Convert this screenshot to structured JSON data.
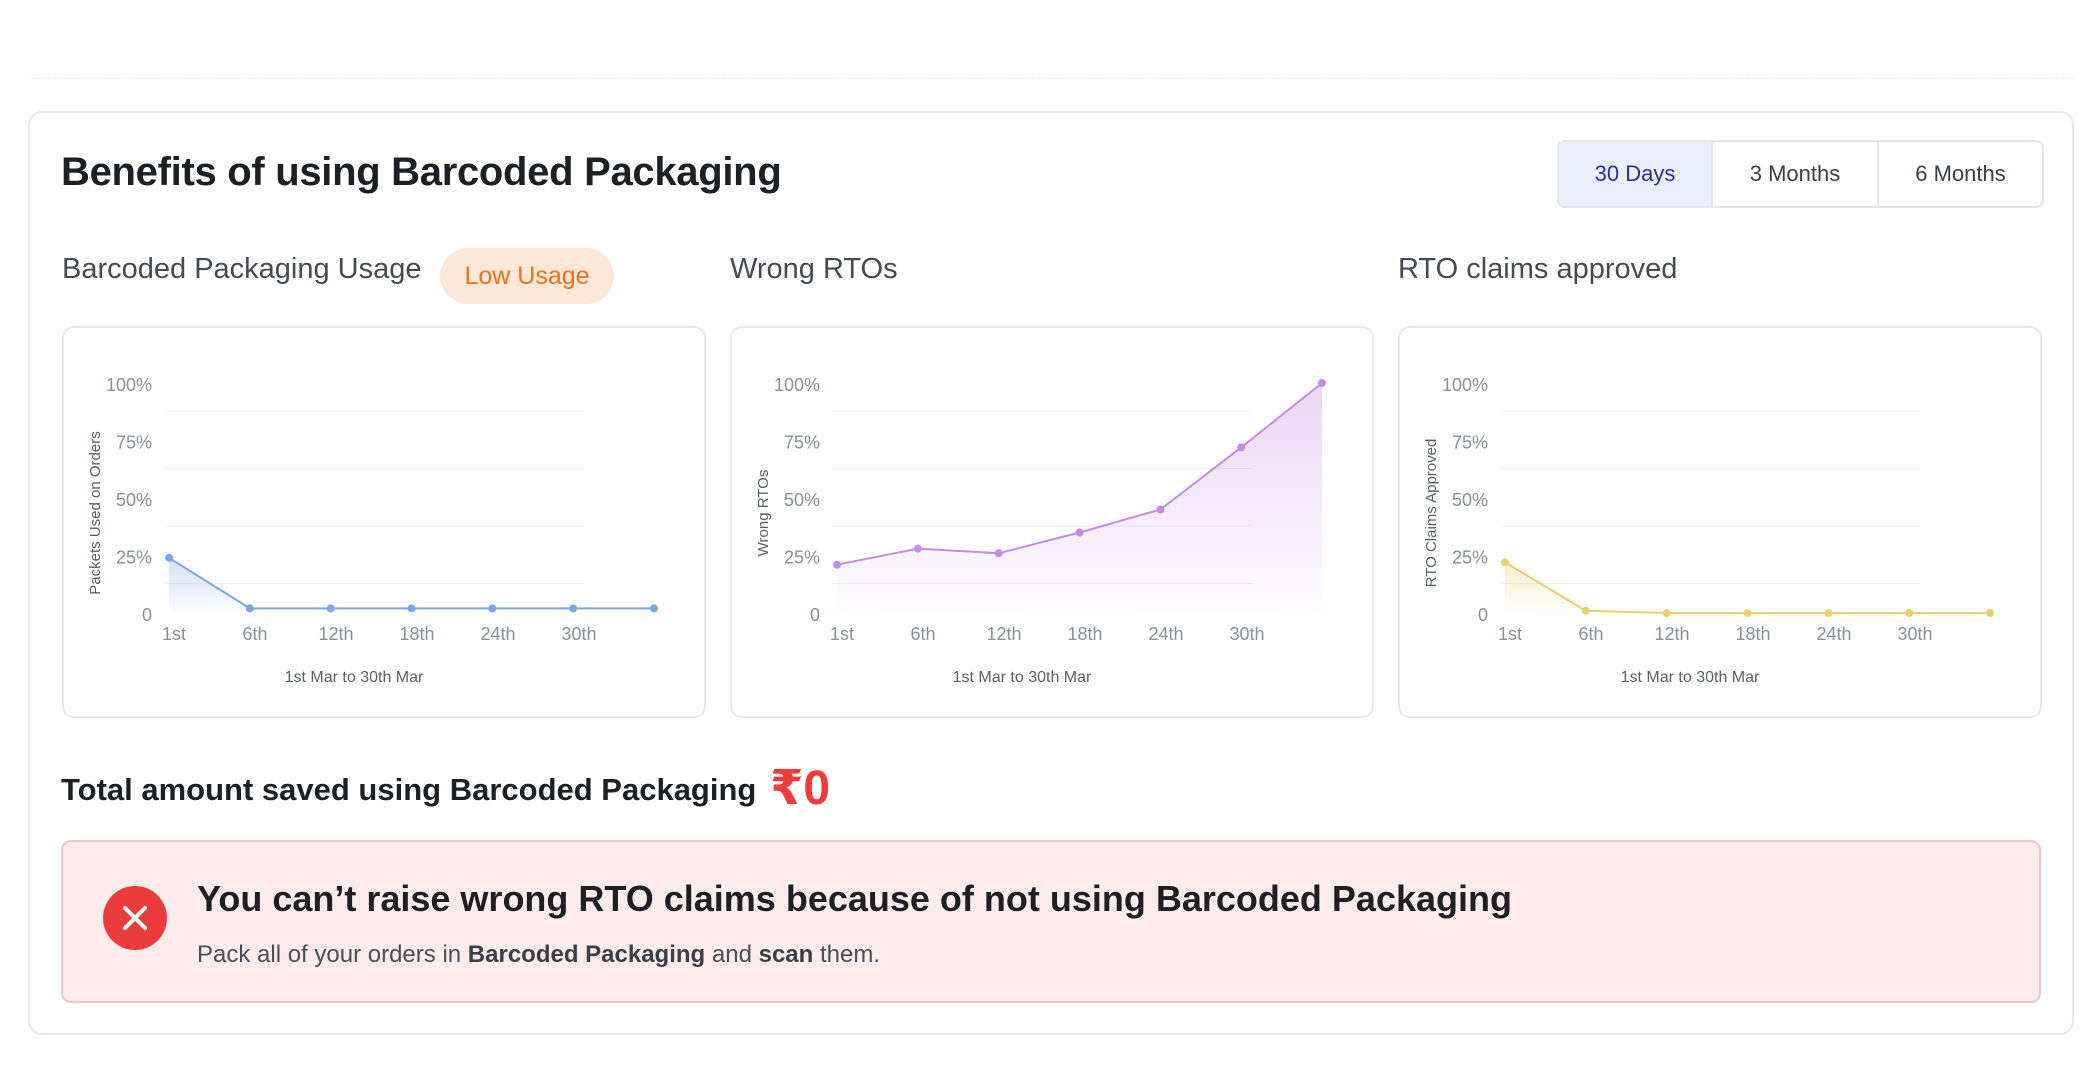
{
  "header": {
    "title": "Benefits of using Barcoded Packaging",
    "tabs": [
      {
        "label": "30 Days",
        "active": true
      },
      {
        "label": "3 Months",
        "active": false
      },
      {
        "label": "6 Months",
        "active": false
      }
    ]
  },
  "sections": {
    "usage": {
      "title": "Barcoded Packaging Usage",
      "badge": "Low Usage"
    },
    "wrong_rto": {
      "title": "Wrong RTOs"
    },
    "claims": {
      "title": "RTO claims approved"
    }
  },
  "colors": {
    "usage_line": "#7ea6e6",
    "wrong_rto_line": "#c48ce6",
    "claims_line": "#e9cf72",
    "accent_red": "#ef3b3b",
    "badge_orange": "#f0711c"
  },
  "chart_data": [
    {
      "type": "area",
      "name": "usage",
      "title": "Barcoded Packaging Usage",
      "ylabel": "Packets Used on Orders",
      "xlabel": "1st Mar to 30th Mar",
      "y_ticks": [
        "100%",
        "75%",
        "50%",
        "25%",
        "0"
      ],
      "x_ticks": [
        "1st",
        "6th",
        "12th",
        "18th",
        "24th",
        "30th"
      ],
      "ylim": [
        0,
        100
      ],
      "values": [
        24,
        2,
        2,
        2,
        2,
        2,
        2
      ]
    },
    {
      "type": "area",
      "name": "wrong_rto",
      "title": "Wrong RTOs",
      "ylabel": "Wrong RTOs",
      "xlabel": "1st Mar to 30th Mar",
      "y_ticks": [
        "100%",
        "75%",
        "50%",
        "25%",
        "0"
      ],
      "x_ticks": [
        "1st",
        "6th",
        "12th",
        "18th",
        "24th",
        "30th"
      ],
      "ylim": [
        0,
        100
      ],
      "values": [
        21,
        28,
        26,
        35,
        45,
        72,
        100
      ]
    },
    {
      "type": "area",
      "name": "claims",
      "title": "RTO claims approved",
      "ylabel": "RTO Claims Approved",
      "xlabel": "1st Mar to 30th Mar",
      "y_ticks": [
        "100%",
        "75%",
        "50%",
        "25%",
        "0"
      ],
      "x_ticks": [
        "1st",
        "6th",
        "12th",
        "18th",
        "24th",
        "30th"
      ],
      "ylim": [
        0,
        100
      ],
      "values": [
        22,
        1,
        0,
        0,
        0,
        0,
        0
      ]
    }
  ],
  "total": {
    "label": "Total amount saved using Barcoded Packaging",
    "value": "₹0"
  },
  "alert": {
    "title": "You can’t raise wrong RTO claims because of not using Barcoded Packaging",
    "text_pre": "Pack all of your orders in ",
    "text_bold1": "Barcoded Packaging",
    "text_mid": " and ",
    "text_bold2": "scan",
    "text_post": " them."
  }
}
